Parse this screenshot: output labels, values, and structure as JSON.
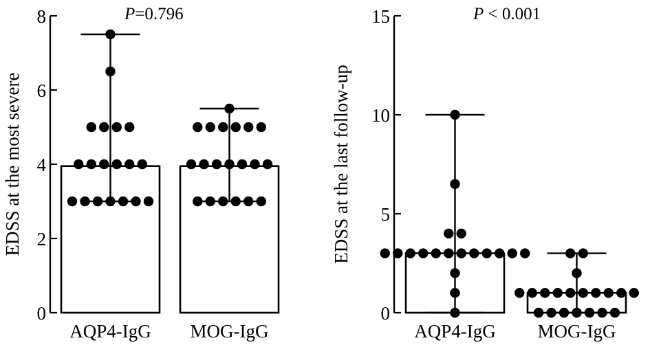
{
  "chart_data": [
    {
      "type": "bar",
      "title": "",
      "annotation_prefix": "P",
      "annotation_value": "=0.796",
      "ylabel": "EDSS at the most severe",
      "xlabel": "",
      "ylim": [
        0,
        8
      ],
      "yticks": [
        0,
        2,
        4,
        6,
        8
      ],
      "ytick_labels": [
        "0",
        "2",
        "4",
        "6",
        "8"
      ],
      "categories": [
        "AQP4-IgG",
        "MOG-IgG"
      ],
      "values": [
        3.95,
        3.95
      ],
      "error_max": [
        7.5,
        5.5
      ],
      "error_min": [
        3.0,
        3.0
      ],
      "points": [
        [
          3,
          3,
          3,
          3,
          3,
          3,
          3,
          4,
          4,
          4,
          4,
          4,
          4,
          5,
          5,
          5,
          5,
          6.5,
          7.5
        ],
        [
          3,
          3,
          3,
          3,
          3,
          3,
          4,
          4,
          4,
          4,
          4,
          4,
          4,
          5,
          5,
          5,
          5,
          5,
          5,
          5.5
        ]
      ],
      "grid": false
    },
    {
      "type": "bar",
      "title": "",
      "annotation_prefix": "P",
      "annotation_value": " < 0.001",
      "ylabel": "EDSS at the last follow-up",
      "xlabel": "",
      "ylim": [
        0,
        15
      ],
      "yticks": [
        0,
        5,
        10,
        15
      ],
      "ytick_labels": [
        "0",
        "5",
        "10",
        "15"
      ],
      "categories": [
        "AQP4-IgG",
        "MOG-IgG"
      ],
      "values": [
        3.0,
        1.0
      ],
      "error_max": [
        10,
        3
      ],
      "error_min": [
        0,
        0
      ],
      "points": [
        [
          0,
          1,
          2,
          3,
          3,
          3,
          3,
          3,
          3,
          3,
          3,
          3,
          3,
          3,
          3,
          4,
          4,
          6.5,
          10
        ],
        [
          0,
          0,
          0,
          0,
          0,
          0,
          0,
          1,
          1,
          1,
          1,
          1,
          1,
          1,
          1,
          1,
          1,
          2,
          3,
          3
        ]
      ],
      "grid": false
    }
  ]
}
